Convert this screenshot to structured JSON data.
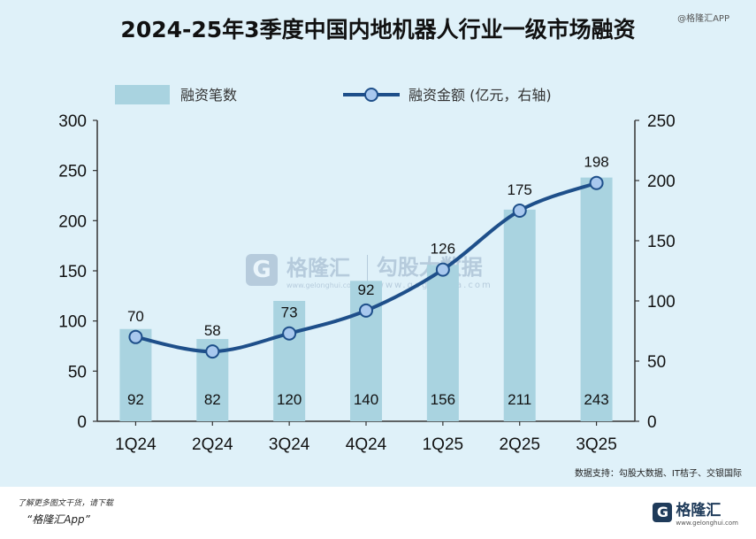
{
  "title": "2024-25年3季度中国内地机器人行业一级市场融资",
  "brand_tag": "@格隆汇APP",
  "source": "数据支持：勾股大数据、IT桔子、交银国际",
  "watermark": {
    "brand": "格隆汇",
    "brand_url": "www.gelonghui.com",
    "partner": "勾股大数据",
    "partner_url": "www.gogudata.com"
  },
  "footer": {
    "note": "了解更多图文干货，请下载",
    "app": "“格隆汇App”",
    "logo_text": "格隆汇",
    "logo_url": "www.gelonghui.com"
  },
  "colors": {
    "bar": "#a9d3e0",
    "line": "#1e4f8a",
    "marker_fill": "#a8c8ee",
    "background": "#dff1f9"
  },
  "chart_data": {
    "type": "bar",
    "categories": [
      "1Q24",
      "2Q24",
      "3Q24",
      "4Q24",
      "1Q25",
      "2Q25",
      "3Q25"
    ],
    "series": [
      {
        "name": "融资笔数",
        "type": "bar",
        "axis": "left",
        "values": [
          92,
          82,
          120,
          140,
          156,
          211,
          243
        ]
      },
      {
        "name": "融资金额 (亿元，右轴)",
        "type": "line",
        "axis": "right",
        "values": [
          70,
          58,
          73,
          92,
          126,
          175,
          198
        ]
      }
    ],
    "y_left": {
      "min": 0,
      "max": 300,
      "ticks": [
        "0",
        "50",
        "100",
        "150",
        "200",
        "250",
        "300"
      ]
    },
    "y_right": {
      "min": 0,
      "max": 250,
      "ticks": [
        "0",
        "50",
        "100",
        "150",
        "200",
        "250"
      ]
    },
    "legend_position": "top",
    "grid": false
  }
}
